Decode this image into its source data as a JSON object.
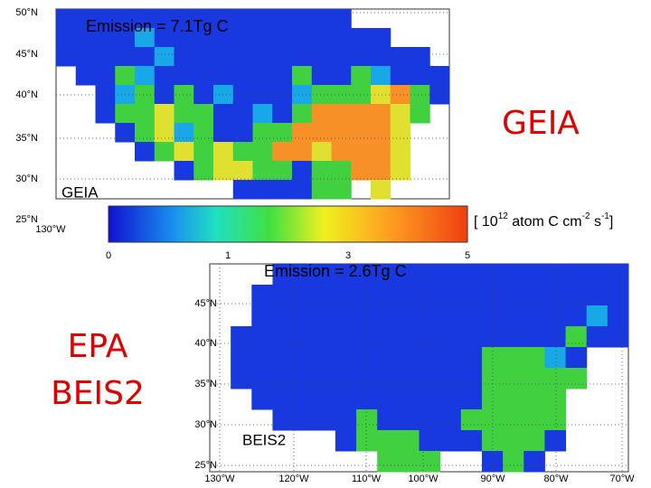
{
  "top_map": {
    "title": "Emission =  7.1Tg C",
    "label": "GEIA",
    "lat_labels": [
      "50°N",
      "45°N",
      "40°N",
      "35°N",
      "30°N",
      "25°N"
    ],
    "lon_label": "130°W"
  },
  "bottom_map": {
    "title": "Emission =  2.6Tg C",
    "label": "BEIS2",
    "lat_labels": [
      "45°N",
      "40°N",
      "35°N",
      "30°N",
      "25°N"
    ],
    "lon_labels": [
      "130°W",
      "120°W",
      "110°W",
      "100°W",
      "90°W",
      "80°W",
      "70°W"
    ]
  },
  "colorbar": {
    "ticks": [
      "0",
      "1",
      "3",
      "5"
    ],
    "unit": [
      "[ 10",
      "12",
      " atom C cm",
      "-2",
      " s",
      "-1",
      "]"
    ]
  },
  "side_labels": [
    "GEIA",
    "EPA",
    "BEIS2"
  ]
}
